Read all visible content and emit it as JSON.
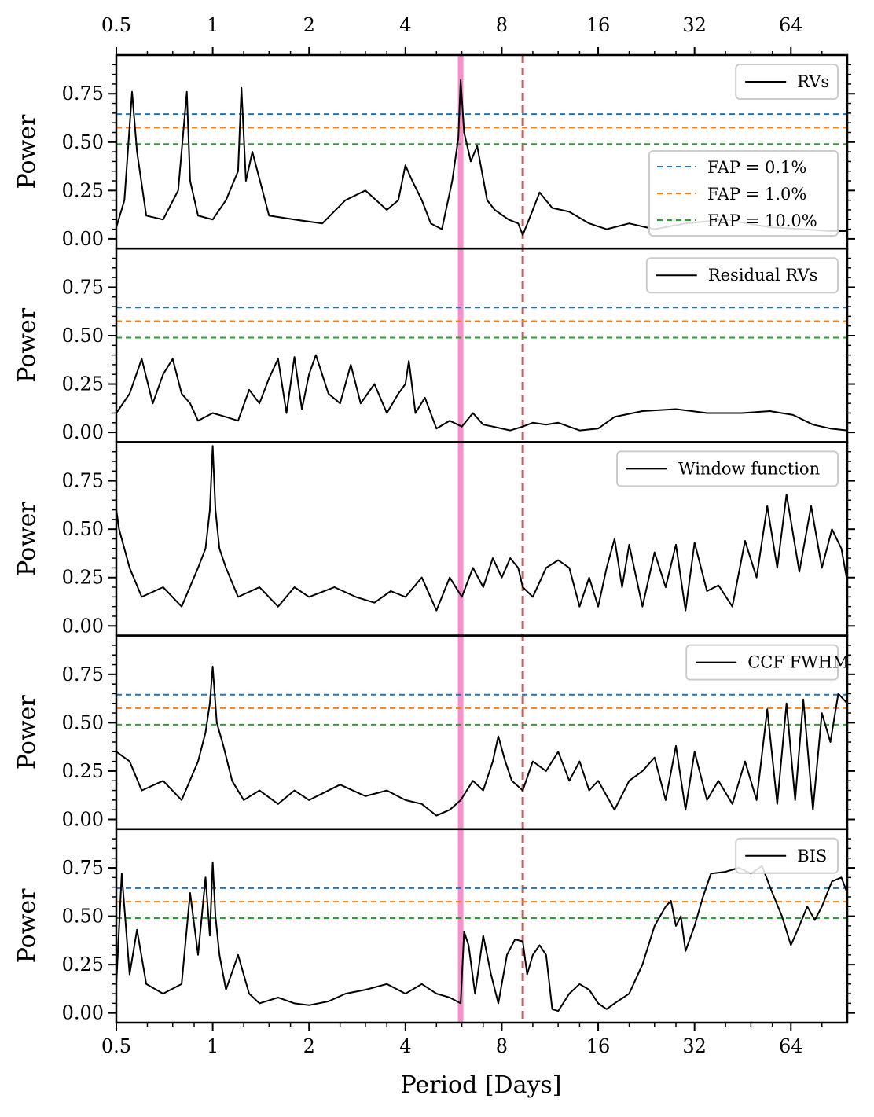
{
  "chart_data": {
    "type": "line",
    "x_scale": "log2",
    "xlabel": "Period [Days]",
    "x_range": [
      0.5,
      96
    ],
    "x_ticks": [
      0.5,
      1,
      2,
      4,
      8,
      16,
      32,
      64
    ],
    "x_tick_labels": [
      "0.5",
      "1",
      "2",
      "4",
      "8",
      "16",
      "32",
      "64"
    ],
    "y_ticks": [
      0.0,
      0.25,
      0.5,
      0.75
    ],
    "y_tick_labels": [
      "0.00",
      "0.25",
      "0.50",
      "0.75"
    ],
    "y_range": [
      -0.05,
      0.95
    ],
    "highlight_period": 5.95,
    "highlight_color": "#f78fca",
    "dashed_period": 9.3,
    "dashed_color": "#c06060",
    "fap_levels": [
      {
        "label": "FAP =  0.1%",
        "value": 0.645,
        "color": "#1f77b4"
      },
      {
        "label": "FAP =  1.0%",
        "value": 0.575,
        "color": "#ff7f0e"
      },
      {
        "label": "FAP = 10.0%",
        "value": 0.49,
        "color": "#2ca02c"
      }
    ],
    "panels": [
      {
        "ylabel": "Power",
        "legend": "RVs",
        "show_fap": true,
        "show_fap_legend": true,
        "x": [
          0.5,
          0.53,
          0.56,
          0.58,
          0.62,
          0.7,
          0.78,
          0.83,
          0.85,
          0.9,
          1.0,
          1.1,
          1.2,
          1.23,
          1.27,
          1.33,
          1.5,
          1.8,
          2.2,
          2.6,
          3.0,
          3.5,
          3.8,
          4.0,
          4.2,
          4.5,
          4.8,
          5.2,
          5.6,
          5.85,
          5.95,
          6.1,
          6.4,
          6.7,
          7.2,
          7.6,
          8.4,
          9.0,
          9.3,
          10.0,
          10.5,
          11.5,
          13.0,
          15.0,
          17.0,
          20.0,
          24.0,
          30.0,
          40.0,
          55.0,
          70.0,
          85.0,
          96.0
        ],
        "y": [
          0.06,
          0.2,
          0.76,
          0.45,
          0.12,
          0.1,
          0.25,
          0.76,
          0.3,
          0.12,
          0.1,
          0.2,
          0.35,
          0.78,
          0.3,
          0.45,
          0.12,
          0.1,
          0.08,
          0.2,
          0.25,
          0.15,
          0.2,
          0.38,
          0.3,
          0.2,
          0.08,
          0.05,
          0.3,
          0.52,
          0.82,
          0.55,
          0.4,
          0.48,
          0.2,
          0.15,
          0.1,
          0.08,
          0.02,
          0.15,
          0.24,
          0.16,
          0.14,
          0.08,
          0.05,
          0.08,
          0.05,
          0.08,
          0.1,
          0.06,
          0.05,
          0.04,
          0.04
        ]
      },
      {
        "ylabel": "Power",
        "legend": "Residual RVs",
        "show_fap": true,
        "show_fap_legend": false,
        "x": [
          0.5,
          0.55,
          0.6,
          0.65,
          0.7,
          0.75,
          0.8,
          0.85,
          0.9,
          1.0,
          1.1,
          1.2,
          1.3,
          1.4,
          1.5,
          1.6,
          1.7,
          1.8,
          1.9,
          2.0,
          2.1,
          2.3,
          2.5,
          2.7,
          2.9,
          3.2,
          3.5,
          3.8,
          4.0,
          4.1,
          4.3,
          4.6,
          5.0,
          5.5,
          6.0,
          6.5,
          7.0,
          7.5,
          8.5,
          9.3,
          10.0,
          11.0,
          12.0,
          14.0,
          16.0,
          18.0,
          22.0,
          28.0,
          35.0,
          45.0,
          55.0,
          65.0,
          75.0,
          85.0,
          96.0
        ],
        "y": [
          0.1,
          0.2,
          0.38,
          0.15,
          0.3,
          0.38,
          0.2,
          0.15,
          0.06,
          0.1,
          0.08,
          0.06,
          0.22,
          0.15,
          0.28,
          0.38,
          0.1,
          0.39,
          0.12,
          0.3,
          0.4,
          0.2,
          0.15,
          0.35,
          0.15,
          0.25,
          0.1,
          0.2,
          0.25,
          0.37,
          0.1,
          0.18,
          0.02,
          0.06,
          0.03,
          0.1,
          0.04,
          0.03,
          0.01,
          0.03,
          0.05,
          0.04,
          0.05,
          0.01,
          0.02,
          0.08,
          0.11,
          0.12,
          0.1,
          0.1,
          0.11,
          0.09,
          0.04,
          0.02,
          0.01
        ]
      },
      {
        "ylabel": "Power",
        "legend": "Window function",
        "show_fap": false,
        "show_fap_legend": false,
        "x": [
          0.5,
          0.51,
          0.55,
          0.6,
          0.7,
          0.8,
          0.9,
          0.95,
          0.98,
          1.0,
          1.02,
          1.05,
          1.1,
          1.2,
          1.4,
          1.6,
          1.8,
          2.0,
          2.4,
          2.8,
          3.2,
          3.6,
          4.0,
          4.5,
          5.0,
          5.5,
          6.0,
          6.5,
          7.0,
          7.5,
          8.0,
          8.5,
          9.0,
          9.3,
          10.0,
          11.0,
          12.0,
          13.0,
          14.0,
          15.0,
          16.0,
          17.0,
          18.0,
          19.0,
          20.0,
          22.0,
          24.0,
          26.0,
          28.0,
          30.0,
          32.0,
          35.0,
          38.0,
          42.0,
          46.0,
          50.0,
          54.0,
          58.0,
          62.0,
          68.0,
          74.0,
          80.0,
          86.0,
          92.0,
          96.0
        ],
        "y": [
          0.6,
          0.5,
          0.3,
          0.15,
          0.2,
          0.1,
          0.3,
          0.4,
          0.6,
          0.93,
          0.6,
          0.4,
          0.3,
          0.15,
          0.2,
          0.1,
          0.2,
          0.15,
          0.2,
          0.15,
          0.12,
          0.18,
          0.15,
          0.25,
          0.08,
          0.25,
          0.15,
          0.3,
          0.2,
          0.35,
          0.25,
          0.35,
          0.3,
          0.2,
          0.15,
          0.3,
          0.34,
          0.3,
          0.1,
          0.25,
          0.1,
          0.3,
          0.45,
          0.2,
          0.42,
          0.1,
          0.38,
          0.2,
          0.42,
          0.08,
          0.43,
          0.18,
          0.21,
          0.1,
          0.44,
          0.25,
          0.62,
          0.3,
          0.68,
          0.28,
          0.62,
          0.3,
          0.5,
          0.4,
          0.23
        ]
      },
      {
        "ylabel": "Power",
        "legend": "CCF FWHM",
        "show_fap": true,
        "show_fap_legend": false,
        "x": [
          0.5,
          0.55,
          0.6,
          0.7,
          0.8,
          0.9,
          0.95,
          0.98,
          1.0,
          1.03,
          1.08,
          1.15,
          1.25,
          1.4,
          1.6,
          1.8,
          2.0,
          2.5,
          3.0,
          3.5,
          4.0,
          4.5,
          5.0,
          5.5,
          5.95,
          6.5,
          7.0,
          7.5,
          7.8,
          8.2,
          8.6,
          9.3,
          10.0,
          11.0,
          12.0,
          13.0,
          14.0,
          15.0,
          16.0,
          18.0,
          20.0,
          22.0,
          24.0,
          26.0,
          28.0,
          30.0,
          32.0,
          35.0,
          38.0,
          42.0,
          46.0,
          50.0,
          54.0,
          58.0,
          62.0,
          66.0,
          70.0,
          75.0,
          80.0,
          85.0,
          90.0,
          96.0
        ],
        "y": [
          0.35,
          0.3,
          0.15,
          0.2,
          0.1,
          0.3,
          0.45,
          0.6,
          0.79,
          0.5,
          0.38,
          0.2,
          0.1,
          0.15,
          0.08,
          0.15,
          0.1,
          0.18,
          0.12,
          0.15,
          0.1,
          0.08,
          0.02,
          0.05,
          0.1,
          0.2,
          0.15,
          0.3,
          0.43,
          0.3,
          0.2,
          0.15,
          0.3,
          0.25,
          0.35,
          0.2,
          0.3,
          0.15,
          0.2,
          0.05,
          0.2,
          0.25,
          0.32,
          0.1,
          0.38,
          0.05,
          0.35,
          0.1,
          0.2,
          0.08,
          0.3,
          0.1,
          0.57,
          0.08,
          0.6,
          0.1,
          0.62,
          0.05,
          0.55,
          0.4,
          0.65,
          0.6
        ]
      },
      {
        "ylabel": "Power",
        "legend": "BIS",
        "show_fap": true,
        "show_fap_legend": false,
        "x": [
          0.5,
          0.52,
          0.55,
          0.58,
          0.62,
          0.7,
          0.8,
          0.85,
          0.9,
          0.95,
          0.98,
          1.0,
          1.02,
          1.05,
          1.1,
          1.2,
          1.3,
          1.4,
          1.6,
          1.8,
          2.0,
          2.3,
          2.6,
          3.0,
          3.5,
          4.0,
          4.5,
          5.0,
          5.5,
          5.95,
          6.1,
          6.3,
          6.6,
          7.0,
          7.4,
          7.8,
          8.3,
          8.8,
          9.3,
          9.6,
          10.0,
          10.5,
          11.0,
          11.5,
          12.0,
          13.0,
          14.0,
          15.0,
          16.0,
          17.0,
          18.0,
          20.0,
          22.0,
          24.0,
          26.0,
          27.0,
          28.0,
          29.0,
          30.0,
          32.0,
          34.0,
          36.0,
          40.0,
          44.0,
          48.0,
          52.0,
          56.0,
          60.0,
          64.0,
          68.0,
          72.0,
          76.0,
          80.0,
          86.0,
          92.0,
          96.0
        ],
        "y": [
          0.15,
          0.72,
          0.2,
          0.43,
          0.15,
          0.1,
          0.15,
          0.62,
          0.3,
          0.7,
          0.4,
          0.78,
          0.5,
          0.3,
          0.12,
          0.3,
          0.1,
          0.05,
          0.08,
          0.05,
          0.04,
          0.06,
          0.1,
          0.12,
          0.15,
          0.1,
          0.15,
          0.1,
          0.08,
          0.05,
          0.42,
          0.35,
          0.1,
          0.4,
          0.2,
          0.05,
          0.3,
          0.38,
          0.37,
          0.2,
          0.3,
          0.35,
          0.3,
          0.02,
          0.01,
          0.1,
          0.15,
          0.12,
          0.05,
          0.02,
          0.05,
          0.1,
          0.25,
          0.45,
          0.55,
          0.58,
          0.45,
          0.5,
          0.32,
          0.45,
          0.6,
          0.72,
          0.73,
          0.75,
          0.72,
          0.76,
          0.62,
          0.5,
          0.35,
          0.45,
          0.55,
          0.48,
          0.55,
          0.68,
          0.7,
          0.62
        ]
      }
    ]
  }
}
